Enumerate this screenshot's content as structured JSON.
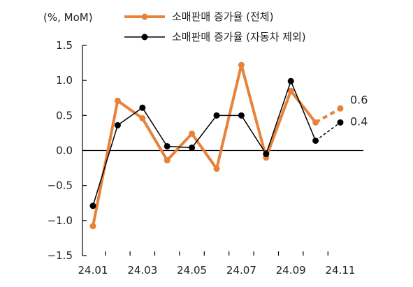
{
  "chart_data": {
    "type": "line",
    "unit_label": "(%, MoM)",
    "x": [
      "24.01",
      "24.02",
      "24.03",
      "24.04",
      "24.05",
      "24.06",
      "24.07",
      "24.08",
      "24.09",
      "24.10",
      "24.11"
    ],
    "x_tick_labels": [
      "24.01",
      "24.03",
      "24.05",
      "24.07",
      "24.09",
      "24.11"
    ],
    "y_tick_labels": [
      "1.5",
      "1.0",
      "0.5",
      "0.0",
      "−0.5",
      "−1.0",
      "−1.5"
    ],
    "ylim": [
      -1.5,
      1.5
    ],
    "y_ticks": [
      1.5,
      1.0,
      0.5,
      0.0,
      -0.5,
      -1.0,
      -1.5
    ],
    "grid": false,
    "legend_position": "top",
    "series": [
      {
        "name": "소매판매 증가율 (전체)",
        "color": "#E8823A",
        "values": [
          -1.08,
          0.71,
          0.46,
          -0.14,
          0.24,
          -0.26,
          1.22,
          -0.1,
          0.85,
          0.4,
          0.6
        ],
        "dashed_last_segment": true,
        "end_label": "0.6"
      },
      {
        "name": "소매판매 증가율 (자동차 제외)",
        "color": "#000000",
        "values": [
          -0.79,
          0.36,
          0.61,
          0.06,
          0.04,
          0.5,
          0.5,
          -0.05,
          0.99,
          0.14,
          0.4
        ],
        "dashed_last_segment": true,
        "end_label": "0.4"
      }
    ]
  }
}
